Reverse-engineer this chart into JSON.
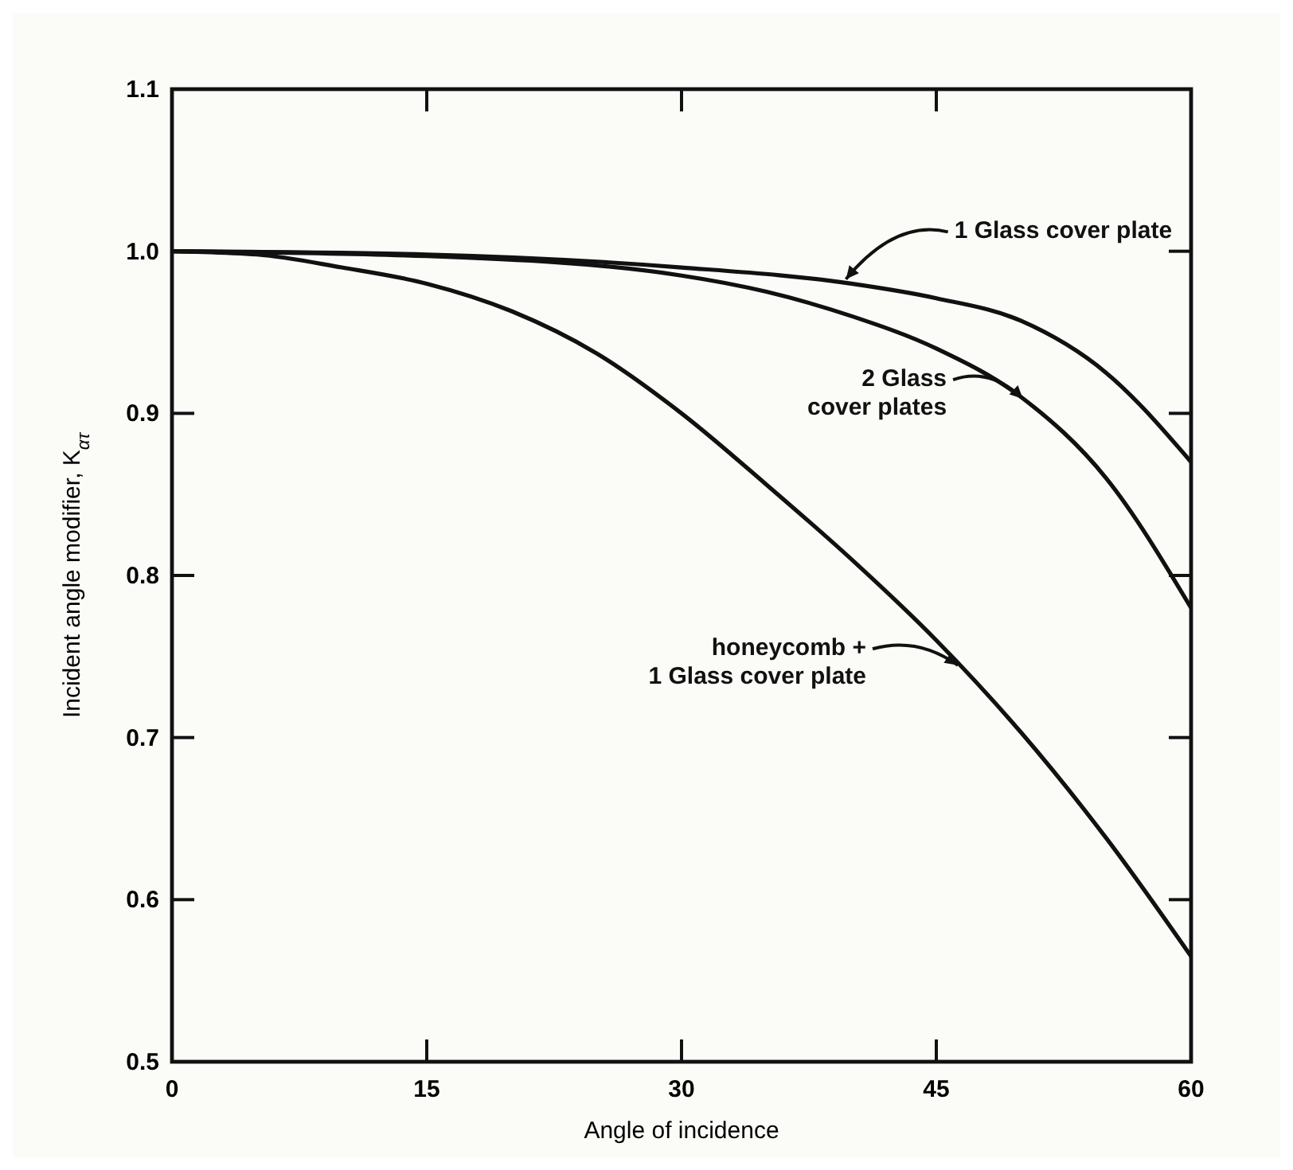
{
  "chart_data": {
    "type": "line",
    "xlabel": "Angle of incidence",
    "ylabel": "Incident angle modifier, K$_{ατ}$",
    "xlim": [
      0,
      60
    ],
    "xticks": [
      0,
      15,
      30,
      45,
      60
    ],
    "ylim": [
      0.5,
      1.1
    ],
    "yticks": [
      0.5,
      0.6,
      0.7,
      0.8,
      0.9,
      {
        "value": 1,
        "label": "1.0"
      },
      1.1
    ],
    "grid": false,
    "legend": "right",
    "marker": "none",
    "line_style": "solid",
    "series": [
      {
        "name": "1 Glass cover plate",
        "color": "#111111",
        "x": [
          0,
          15,
          30,
          40,
          45,
          50,
          55,
          60
        ],
        "values": [
          1.0,
          0.998,
          0.99,
          0.98,
          0.971,
          0.957,
          0.925,
          0.87
        ]
      },
      {
        "name": "2 Glass\ncover plates",
        "color": "#111111",
        "x": [
          0,
          15,
          30,
          35,
          40,
          45,
          50,
          55,
          60
        ],
        "values": [
          1.0,
          0.997,
          0.985,
          0.975,
          0.96,
          0.94,
          0.91,
          0.86,
          0.78
        ]
      },
      {
        "name": "honeycomb +\n1 Glass cover plate",
        "color": "#111111",
        "x": [
          0,
          5,
          10,
          15,
          20,
          25,
          30,
          35,
          40,
          45,
          50,
          55,
          60
        ],
        "values": [
          1.0,
          0.998,
          0.99,
          0.98,
          0.963,
          0.937,
          0.9,
          0.856,
          0.81,
          0.76,
          0.703,
          0.638,
          0.565
        ]
      }
    ]
  }
}
